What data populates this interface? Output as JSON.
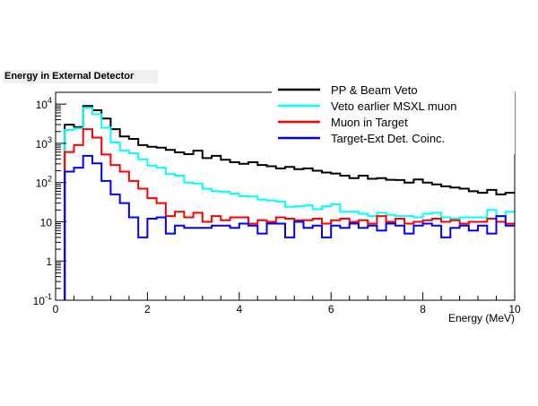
{
  "chart_data": {
    "type": "line",
    "title": "Energy in External Detector",
    "xlabel": "Energy (MeV)",
    "ylabel": "",
    "xlim": [
      0,
      10
    ],
    "ylim": [
      0.1,
      20000
    ],
    "y_scale": "log",
    "legend_position": "top-right",
    "grid": false,
    "x_ticks": [
      {
        "value": 0,
        "label": "0"
      },
      {
        "value": 2,
        "label": "2"
      },
      {
        "value": 4,
        "label": "4"
      },
      {
        "value": 6,
        "label": "6"
      },
      {
        "value": 8,
        "label": "8"
      },
      {
        "value": 10,
        "label": "10"
      }
    ],
    "y_ticks": [
      {
        "value": 0.1,
        "base": "10",
        "exp": "-1"
      },
      {
        "value": 1,
        "base": "1",
        "exp": ""
      },
      {
        "value": 10,
        "base": "10",
        "exp": ""
      },
      {
        "value": 100,
        "base": "10",
        "exp": "2"
      },
      {
        "value": 1000,
        "base": "10",
        "exp": "3"
      },
      {
        "value": 10000,
        "base": "10",
        "exp": "4"
      }
    ],
    "bin_width": 0.2,
    "series": [
      {
        "name": "PP & Beam Veto",
        "color": "#000000",
        "x": [
          0.2,
          0.4,
          0.6,
          0.8,
          1.0,
          1.2,
          1.4,
          1.6,
          1.8,
          2.0,
          2.2,
          2.4,
          2.6,
          2.8,
          3.0,
          3.2,
          3.4,
          3.6,
          3.8,
          4.0,
          4.2,
          4.4,
          4.6,
          4.8,
          5.0,
          5.2,
          5.4,
          5.6,
          5.8,
          6.0,
          6.2,
          6.4,
          6.6,
          6.8,
          7.0,
          7.2,
          7.4,
          7.6,
          7.8,
          8.0,
          8.2,
          8.4,
          8.6,
          8.8,
          9.0,
          9.2,
          9.4,
          9.6,
          9.8
        ],
        "values": [
          3000,
          2600,
          9000,
          7000,
          4300,
          2300,
          1500,
          1300,
          900,
          820,
          780,
          680,
          590,
          530,
          650,
          420,
          480,
          380,
          330,
          300,
          330,
          280,
          260,
          230,
          250,
          220,
          230,
          200,
          180,
          170,
          150,
          130,
          150,
          125,
          130,
          118,
          116,
          100,
          120,
          100,
          90,
          80,
          75,
          70,
          60,
          55,
          65,
          50,
          55
        ]
      },
      {
        "name": "Veto earlier MSXL muon",
        "color": "#00ffff",
        "x": [
          0.2,
          0.4,
          0.6,
          0.8,
          1.0,
          1.2,
          1.4,
          1.6,
          1.8,
          2.0,
          2.2,
          2.4,
          2.6,
          2.8,
          3.0,
          3.2,
          3.4,
          3.6,
          3.8,
          4.0,
          4.2,
          4.4,
          4.6,
          4.8,
          5.0,
          5.2,
          5.4,
          5.6,
          5.8,
          6.0,
          6.2,
          6.4,
          6.6,
          6.8,
          7.0,
          7.2,
          7.4,
          7.6,
          7.8,
          8.0,
          8.2,
          8.4,
          8.6,
          8.8,
          9.0,
          9.2,
          9.4,
          9.6,
          9.8
        ],
        "values": [
          2200,
          2400,
          8000,
          5500,
          2500,
          1050,
          650,
          560,
          390,
          270,
          240,
          165,
          150,
          100,
          95,
          70,
          60,
          58,
          52,
          45,
          44,
          37,
          35,
          33,
          24,
          25,
          26,
          21,
          25,
          28,
          18,
          18,
          16,
          14,
          17,
          15,
          14,
          14,
          13,
          16,
          17,
          13,
          12,
          13,
          13,
          13,
          20,
          14,
          18
        ]
      },
      {
        "name": "Muon in Target",
        "color": "#ff0000",
        "x": [
          0.2,
          0.4,
          0.6,
          0.8,
          1.0,
          1.2,
          1.4,
          1.6,
          1.8,
          2.0,
          2.2,
          2.4,
          2.6,
          2.8,
          3.0,
          3.2,
          3.4,
          3.6,
          3.8,
          4.0,
          4.2,
          4.4,
          4.6,
          4.8,
          5.0,
          5.2,
          5.4,
          5.6,
          5.8,
          6.0,
          6.2,
          6.4,
          6.6,
          6.8,
          7.0,
          7.2,
          7.4,
          7.6,
          7.8,
          8.0,
          8.2,
          8.4,
          8.6,
          8.8,
          9.0,
          9.2,
          9.4,
          9.6,
          9.8
        ],
        "values": [
          600,
          900,
          2300,
          1400,
          520,
          280,
          190,
          110,
          70,
          40,
          30,
          14,
          18,
          13,
          17,
          10,
          14,
          11,
          13,
          13,
          9,
          11,
          10,
          13,
          12,
          11,
          11,
          12,
          9,
          11,
          12,
          10,
          11,
          9,
          14,
          10,
          12,
          9,
          10,
          11,
          12,
          10,
          11,
          9,
          10,
          10,
          12,
          10,
          9
        ]
      },
      {
        "name": "Target-Ext Det. Coinc.",
        "color": "#0000ff",
        "x": [
          0.2,
          0.4,
          0.6,
          0.8,
          1.0,
          1.2,
          1.4,
          1.6,
          1.8,
          2.0,
          2.2,
          2.4,
          2.6,
          2.8,
          3.0,
          3.2,
          3.4,
          3.6,
          3.8,
          4.0,
          4.2,
          4.4,
          4.6,
          4.8,
          5.0,
          5.2,
          5.4,
          5.6,
          5.8,
          6.0,
          6.2,
          6.4,
          6.6,
          6.8,
          7.0,
          7.2,
          7.4,
          7.6,
          7.8,
          8.0,
          8.2,
          8.4,
          8.6,
          8.8,
          9.0,
          9.2,
          9.4,
          9.6,
          9.8
        ],
        "values": [
          190,
          240,
          480,
          310,
          110,
          50,
          30,
          13,
          4,
          12,
          13,
          5,
          8,
          7,
          7,
          7,
          8,
          8,
          7,
          9,
          8,
          5,
          9,
          9,
          4,
          10,
          7,
          8,
          4,
          8,
          7,
          9,
          7,
          8,
          6,
          9,
          8,
          5,
          8,
          9,
          8,
          4,
          7,
          8,
          6,
          8,
          5,
          14,
          8
        ]
      }
    ]
  }
}
